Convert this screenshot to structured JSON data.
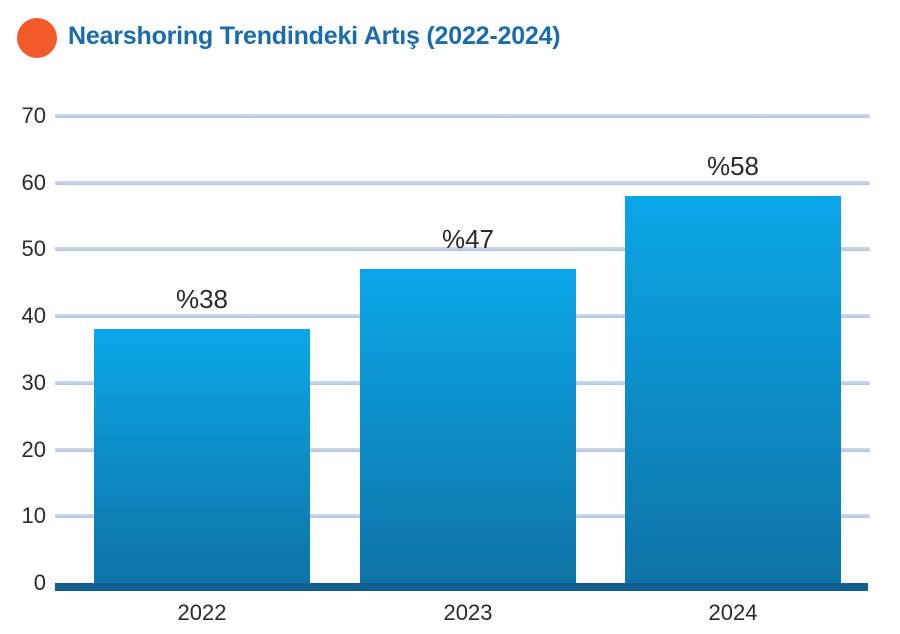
{
  "header": {
    "title": "Nearshoring Trendindeki Artış (2022-2024)",
    "title_color": "#1b6cab",
    "bullet_color": "#f15b2a"
  },
  "chart_data": {
    "type": "bar",
    "title": "Nearshoring Trendindeki Artış (2022-2024)",
    "categories": [
      "2022",
      "2023",
      "2024"
    ],
    "values": [
      38,
      47,
      58
    ],
    "value_labels": [
      "%38",
      "%47",
      "%58"
    ],
    "xlabel": "",
    "ylabel": "",
    "ylim": [
      0,
      70
    ],
    "y_ticks": [
      0,
      10,
      20,
      30,
      40,
      50,
      60,
      70
    ],
    "grid": true,
    "legend": false,
    "colors": {
      "bar_top": "#0ba6e8",
      "bar_bottom": "#0e74a6",
      "gridline": "#b6c5de",
      "axis": "#135f91",
      "tick_label": "#2d2a2b",
      "value_label": "#2d2a2b"
    }
  }
}
